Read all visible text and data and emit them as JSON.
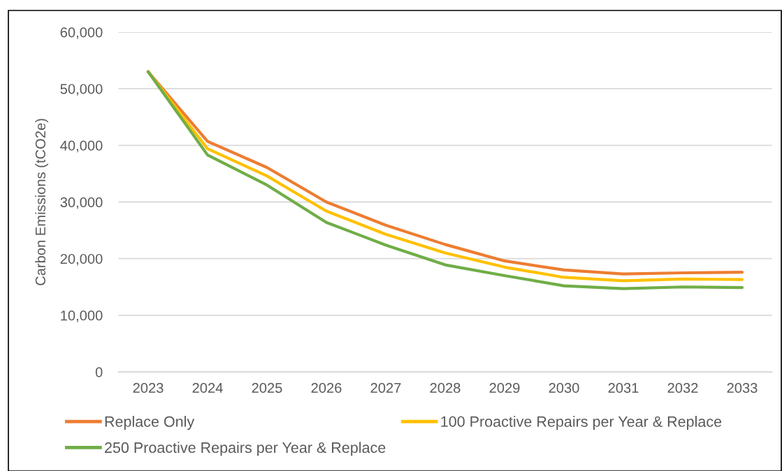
{
  "chart_data": {
    "type": "line",
    "ylabel": "Carbon Emissions (tCO2e)",
    "categories": [
      "2023",
      "2024",
      "2025",
      "2026",
      "2027",
      "2028",
      "2029",
      "2030",
      "2031",
      "2032",
      "2033"
    ],
    "series": [
      {
        "name": "Replace Only",
        "color": "#ed7d31",
        "values": [
          53000,
          40700,
          36100,
          30000,
          25900,
          22500,
          19600,
          18000,
          17300,
          17500,
          17600
        ]
      },
      {
        "name": "100 Proactive Repairs per Year & Replace",
        "color": "#ffc000",
        "values": [
          53000,
          39400,
          34600,
          28400,
          24300,
          21000,
          18500,
          16700,
          16100,
          16400,
          16300
        ]
      },
      {
        "name": "250 Proactive Repairs per Year & Replace",
        "color": "#70ad47",
        "values": [
          53000,
          38300,
          33000,
          26400,
          22400,
          18900,
          17000,
          15200,
          14700,
          15000,
          14900
        ]
      }
    ],
    "ylim": [
      0,
      60000
    ],
    "yticks": [
      {
        "value": 0,
        "label": "0"
      },
      {
        "value": 10000,
        "label": "10,000"
      },
      {
        "value": 20000,
        "label": "20,000"
      },
      {
        "value": 30000,
        "label": "30,000"
      },
      {
        "value": 40000,
        "label": "40,000"
      },
      {
        "value": 50000,
        "label": "50,000"
      },
      {
        "value": 60000,
        "label": "60,000"
      }
    ],
    "grid": "y",
    "legend": "bottom",
    "line_style": "solid"
  }
}
